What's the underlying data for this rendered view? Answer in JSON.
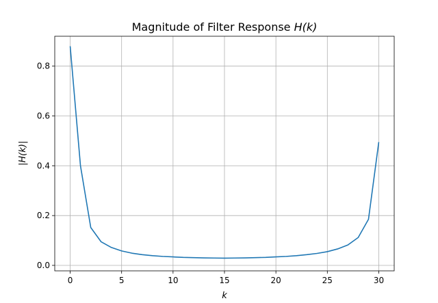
{
  "chart_data": {
    "type": "line",
    "title_plain": "Magnitude of Filter Response ",
    "title_math": "H(k)",
    "xlabel": "k",
    "ylabel": "|H(k)|",
    "xlim": [
      -1.5,
      31.5
    ],
    "ylim": [
      -0.022,
      0.92
    ],
    "xticks": [
      0,
      5,
      10,
      15,
      20,
      25,
      30
    ],
    "xtick_labels": [
      "0",
      "5",
      "10",
      "15",
      "20",
      "25",
      "30"
    ],
    "yticks": [
      0.0,
      0.2,
      0.4,
      0.6,
      0.8
    ],
    "ytick_labels": [
      "0.0",
      "0.2",
      "0.4",
      "0.6",
      "0.8"
    ],
    "grid": true,
    "series": [
      {
        "color": "#1f77b4",
        "x": [
          0,
          1,
          2,
          3,
          4,
          5,
          6,
          7,
          8,
          9,
          10,
          11,
          12,
          13,
          14,
          15,
          16,
          17,
          18,
          19,
          20,
          21,
          22,
          23,
          24,
          25,
          26,
          27,
          28,
          29,
          30
        ],
        "y": [
          0.88,
          0.4,
          0.152,
          0.095,
          0.072,
          0.058,
          0.049,
          0.043,
          0.039,
          0.036,
          0.034,
          0.032,
          0.031,
          0.03,
          0.0295,
          0.029,
          0.0295,
          0.03,
          0.031,
          0.032,
          0.034,
          0.036,
          0.039,
          0.043,
          0.048,
          0.055,
          0.066,
          0.082,
          0.112,
          0.185,
          0.495
        ]
      }
    ]
  }
}
